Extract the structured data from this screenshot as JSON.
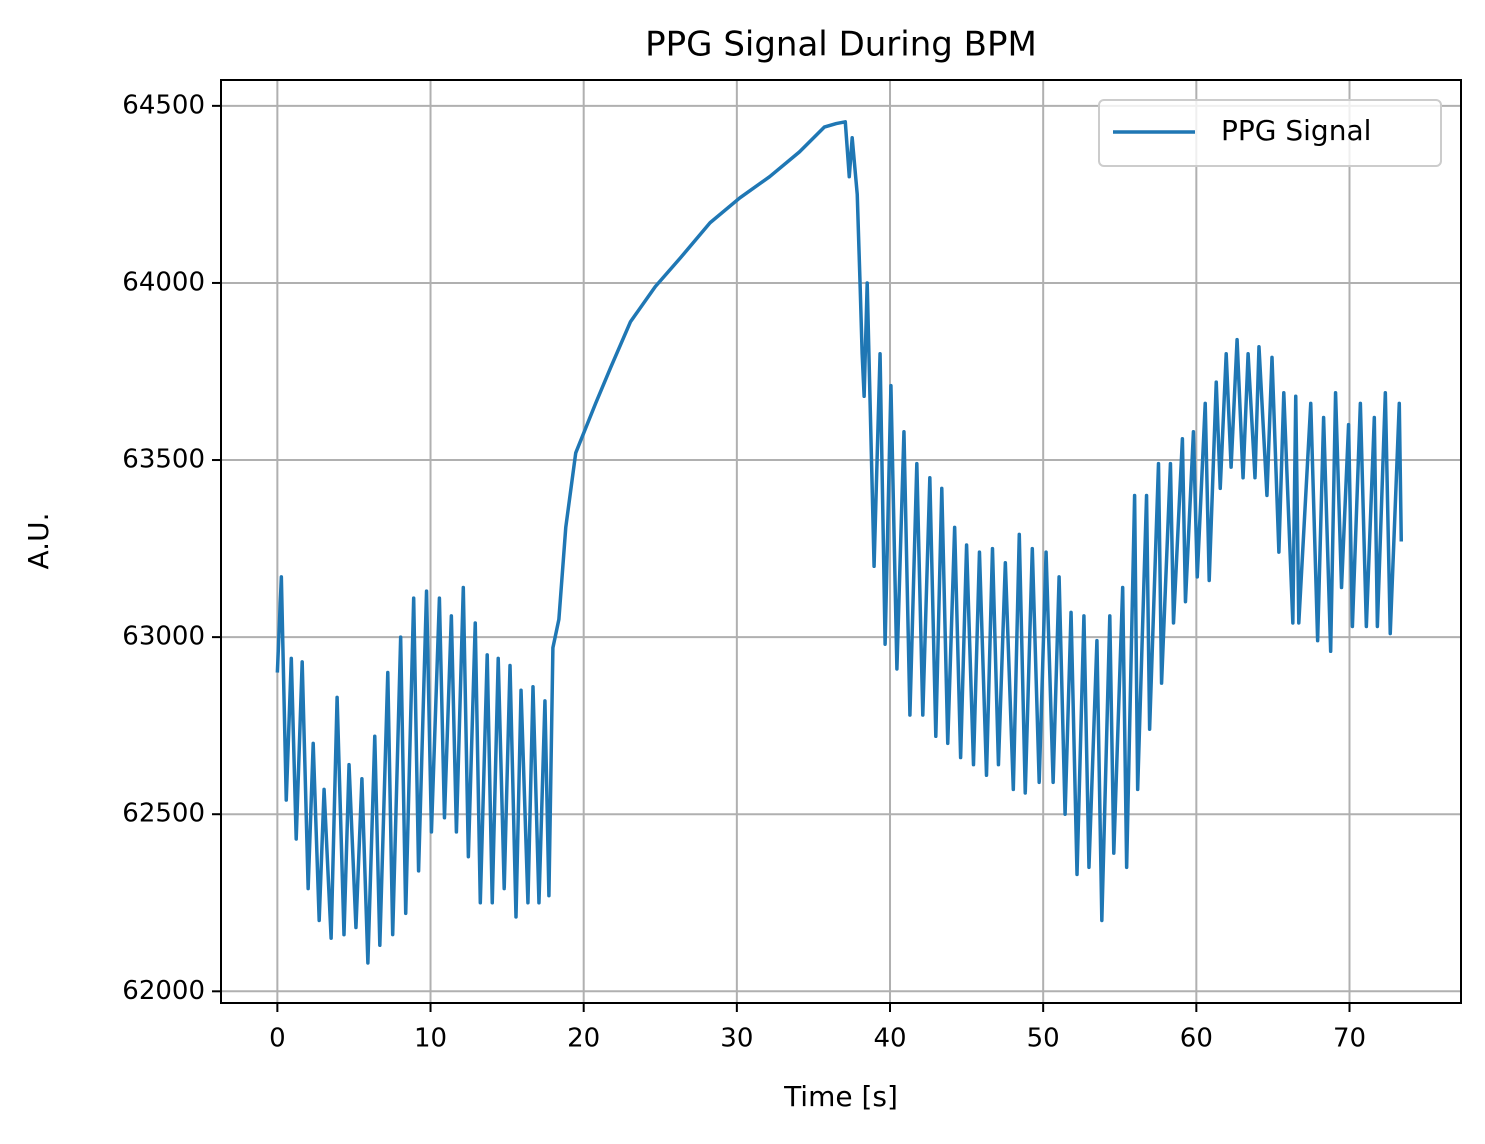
{
  "chart_data": {
    "type": "line",
    "title": "PPG Signal During BPM",
    "xlabel": "Time [s]",
    "ylabel": "A.U.",
    "xlim": [
      -3.68,
      77.28
    ],
    "ylim": [
      61967,
      64573
    ],
    "xticks": [
      0,
      10,
      20,
      30,
      40,
      50,
      60,
      70
    ],
    "yticks": [
      62000,
      62500,
      63000,
      63500,
      64000,
      64500
    ],
    "grid": true,
    "legend": "upper right",
    "series": [
      {
        "name": "PPG Signal",
        "color": "#1f77b4",
        "x": [
          0,
          0.26,
          0.58,
          0.91,
          1.23,
          1.62,
          2.01,
          2.34,
          2.73,
          3.05,
          3.51,
          3.9,
          4.35,
          4.68,
          5.13,
          5.52,
          5.91,
          6.36,
          6.69,
          7.21,
          7.53,
          8.05,
          8.38,
          8.9,
          9.22,
          9.74,
          10.06,
          10.58,
          10.91,
          11.36,
          11.69,
          12.14,
          12.47,
          12.92,
          13.25,
          13.7,
          14.03,
          14.42,
          14.81,
          15.19,
          15.58,
          15.91,
          16.36,
          16.69,
          17.08,
          17.47,
          17.73,
          17.99,
          18.38,
          18.83,
          19.48,
          20.13,
          20.78,
          21.75,
          23.05,
          24.68,
          26.3,
          28.25,
          30.19,
          32.14,
          34.09,
          35.71,
          36.49,
          37.08,
          37.34,
          37.53,
          37.86,
          38.05,
          38.18,
          38.31,
          38.51,
          38.96,
          39.35,
          39.68,
          40.06,
          40.45,
          40.91,
          41.3,
          41.75,
          42.14,
          42.6,
          42.99,
          43.38,
          43.77,
          44.22,
          44.61,
          45.0,
          45.45,
          45.84,
          46.3,
          46.69,
          47.08,
          47.53,
          48.05,
          48.44,
          48.83,
          49.29,
          49.74,
          50.19,
          50.65,
          51.04,
          51.43,
          51.82,
          52.21,
          52.66,
          52.99,
          53.51,
          53.83,
          54.35,
          54.61,
          55.19,
          55.45,
          55.97,
          56.17,
          56.75,
          56.95,
          57.53,
          57.73,
          58.31,
          58.51,
          59.09,
          59.29,
          59.81,
          60.06,
          60.58,
          60.84,
          61.3,
          61.56,
          61.95,
          62.27,
          62.66,
          63.05,
          63.38,
          63.83,
          64.09,
          64.61,
          64.94,
          65.39,
          65.71,
          66.3,
          66.49,
          66.69,
          67.47,
          67.92,
          68.31,
          68.77,
          69.09,
          69.48,
          69.94,
          70.19,
          70.71,
          71.1,
          71.62,
          71.82,
          72.34,
          72.66,
          73.25,
          73.38
        ],
        "values": [
          62900,
          63170,
          62540,
          62940,
          62430,
          62930,
          62290,
          62700,
          62200,
          62570,
          62150,
          62830,
          62160,
          62640,
          62180,
          62600,
          62080,
          62720,
          62130,
          62900,
          62160,
          63000,
          62220,
          63110,
          62340,
          63130,
          62450,
          63110,
          62490,
          63060,
          62450,
          63140,
          62380,
          63040,
          62250,
          62950,
          62250,
          62940,
          62290,
          62920,
          62210,
          62850,
          62250,
          62860,
          62250,
          62820,
          62270,
          62970,
          63050,
          63310,
          63520,
          63590,
          63660,
          63760,
          63890,
          63990,
          64070,
          64170,
          64240,
          64300,
          64370,
          64440,
          64450,
          64455,
          64300,
          64410,
          64250,
          63990,
          63800,
          63680,
          64000,
          63200,
          63800,
          62980,
          63710,
          62910,
          63580,
          62780,
          63490,
          62780,
          63450,
          62720,
          63420,
          62700,
          63310,
          62660,
          63260,
          62640,
          63240,
          62610,
          63250,
          62640,
          63210,
          62570,
          63290,
          62560,
          63250,
          62590,
          63240,
          62590,
          63170,
          62500,
          63070,
          62330,
          63060,
          62350,
          62990,
          62200,
          63060,
          62390,
          63140,
          62350,
          63400,
          62570,
          63400,
          62740,
          63490,
          62870,
          63490,
          63040,
          63560,
          63100,
          63580,
          63170,
          63660,
          63160,
          63720,
          63420,
          63800,
          63480,
          63840,
          63450,
          63800,
          63450,
          63820,
          63400,
          63790,
          63240,
          63690,
          63040,
          63680,
          63040,
          63660,
          62990,
          63620,
          62960,
          63690,
          63140,
          63600,
          63030,
          63660,
          63030,
          63620,
          63030,
          63690,
          63010,
          63660,
          63270
        ]
      }
    ]
  }
}
